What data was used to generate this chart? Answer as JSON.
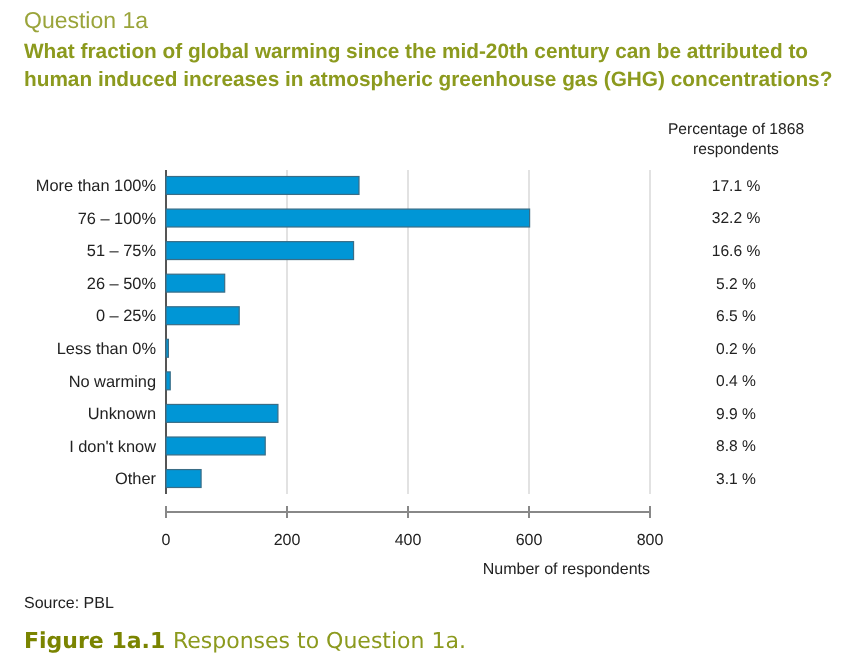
{
  "chart_data": {
    "type": "bar",
    "orientation": "horizontal",
    "title": "What fraction of global warming since the mid-20th century can be attributed to human induced increases in atmospheric greenhouse gas (GHG) concentrations?",
    "xlabel": "Number of respondents",
    "categories": [
      "More than 100%",
      "76 – 100%",
      "51 – 75%",
      "26 – 50%",
      "0 – 25%",
      "Less than 0%",
      "No warming",
      "Unknown",
      "I don't know",
      "Other"
    ],
    "values": [
      319,
      601,
      310,
      97,
      121,
      4,
      7,
      185,
      164,
      58
    ],
    "color": "#0096d6",
    "xlim": [
      0,
      800
    ],
    "xticks": [
      0,
      200,
      400,
      600,
      800
    ],
    "grid": "x",
    "annotations": [
      "Question 1a",
      "Percentage of 1868 respondents",
      "17.1 %",
      "32.2 %",
      "16.6 %",
      "5.2 %",
      "6.5 %",
      "0.2 %",
      "0.4 %",
      "9.9 %",
      "8.8 %",
      "3.1 %",
      "Source: PBL",
      "Figure 1a.1 Responses to Question 1a."
    ]
  }
}
